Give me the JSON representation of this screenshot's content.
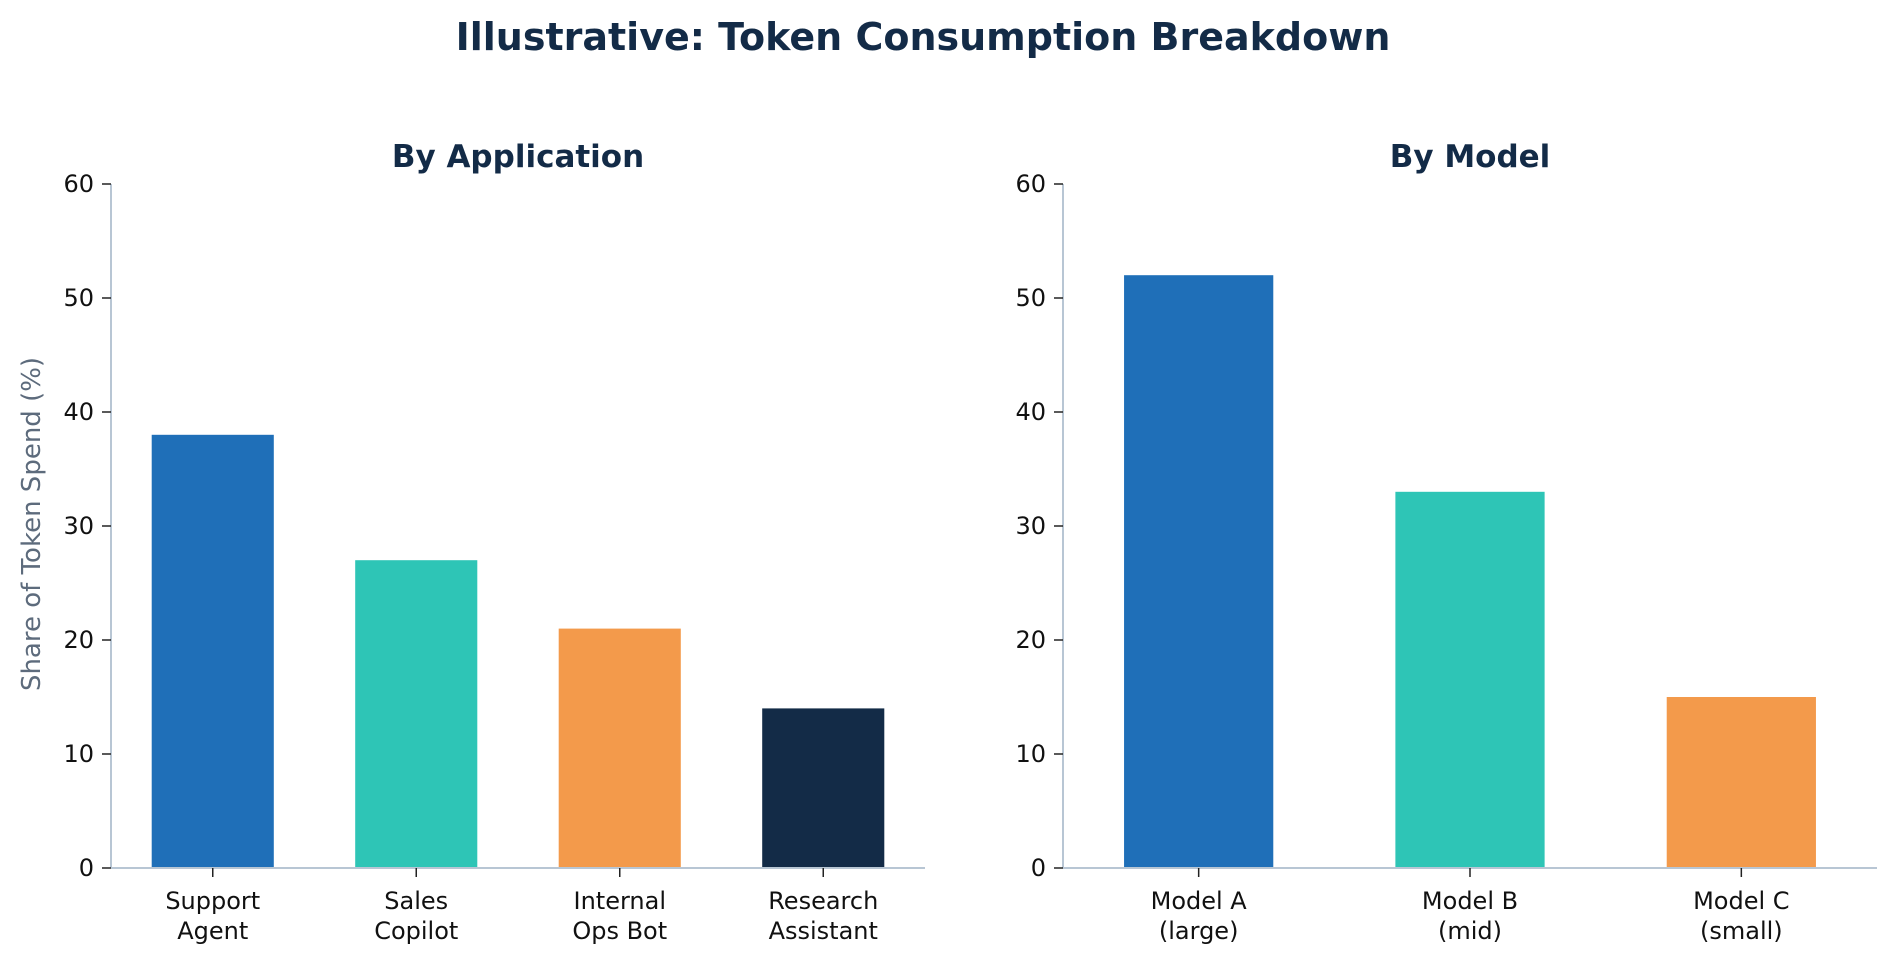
{
  "figure": {
    "title": "Illustrative: Token Consumption Breakdown"
  },
  "chart_data": [
    {
      "type": "bar",
      "title": "By Application",
      "xlabel": "",
      "ylabel": "Share of Token Spend (%)",
      "ylim": [
        0,
        60
      ],
      "yticks": [
        0,
        10,
        20,
        30,
        40,
        50,
        60
      ],
      "grid": false,
      "categories": [
        [
          "Support",
          "Agent"
        ],
        [
          "Sales",
          "Copilot"
        ],
        [
          "Internal",
          "Ops Bot"
        ],
        [
          "Research",
          "Assistant"
        ]
      ],
      "values": [
        38,
        27,
        21,
        14
      ],
      "colors": [
        "#1f6fb8",
        "#2ec5b6",
        "#f39a4b",
        "#132b47"
      ]
    },
    {
      "type": "bar",
      "title": "By Model",
      "xlabel": "",
      "ylabel": "",
      "ylim": [
        0,
        60
      ],
      "yticks": [
        0,
        10,
        20,
        30,
        40,
        50,
        60
      ],
      "grid": false,
      "categories": [
        [
          "Model A",
          "(large)"
        ],
        [
          "Model B",
          "(mid)"
        ],
        [
          "Model C",
          "(small)"
        ]
      ],
      "values": [
        52,
        33,
        15
      ],
      "colors": [
        "#1f6fb8",
        "#2ec5b6",
        "#f39a4b"
      ]
    }
  ],
  "style": {
    "axis_color": "#b8c6d4",
    "title_color": "#132b47"
  }
}
